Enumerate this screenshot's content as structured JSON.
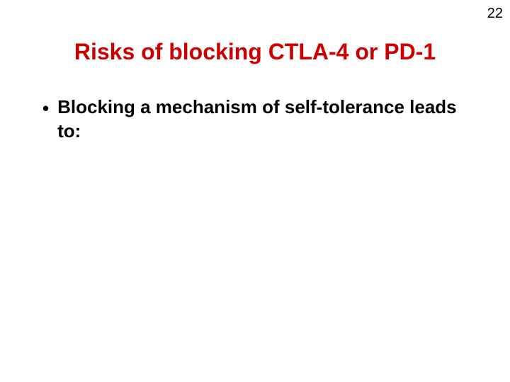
{
  "page_number": "22",
  "title": {
    "text": "Risks of blocking CTLA-4 or PD-1",
    "color": "#cc0000",
    "font_size": 32,
    "font_weight": "bold"
  },
  "bullet": {
    "marker": "•",
    "text": "Blocking a mechanism of self-tolerance leads to:",
    "color": "#000000",
    "font_size": 26,
    "font_weight": "bold"
  },
  "background_color": "#ffffff",
  "font_family": "Comic Sans MS"
}
